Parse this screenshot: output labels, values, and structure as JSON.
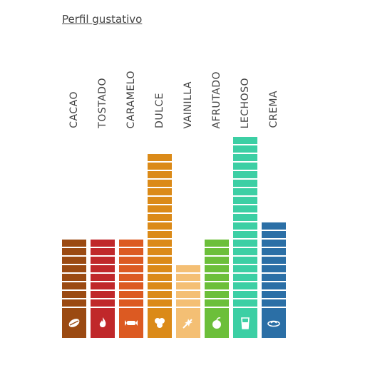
{
  "title": "Perfil gustativo",
  "flavors": [
    {
      "label": "CACAO",
      "level": 8,
      "color": "#9b4a12",
      "icon": "cocoa-bean-icon"
    },
    {
      "label": "TOSTADO",
      "level": 8,
      "color": "#c0282a",
      "icon": "flame-icon"
    },
    {
      "label": "CARAMELO",
      "level": 8,
      "color": "#dc5a22",
      "icon": "caramel-icon"
    },
    {
      "label": "DULCE",
      "level": 18,
      "color": "#db8a18",
      "icon": "sugar-icon"
    },
    {
      "label": "VAINILLA",
      "level": 5,
      "color": "#f4bf74",
      "icon": "vanilla-icon"
    },
    {
      "label": "AFRUTADO",
      "level": 8,
      "color": "#6cbf3a",
      "icon": "apple-icon"
    },
    {
      "label": "LECHOSO",
      "level": 20,
      "color": "#3ccfa4",
      "icon": "milk-glass-icon"
    },
    {
      "label": "CREMA",
      "level": 10,
      "color": "#2b6fa6",
      "icon": "cream-icon"
    }
  ]
}
